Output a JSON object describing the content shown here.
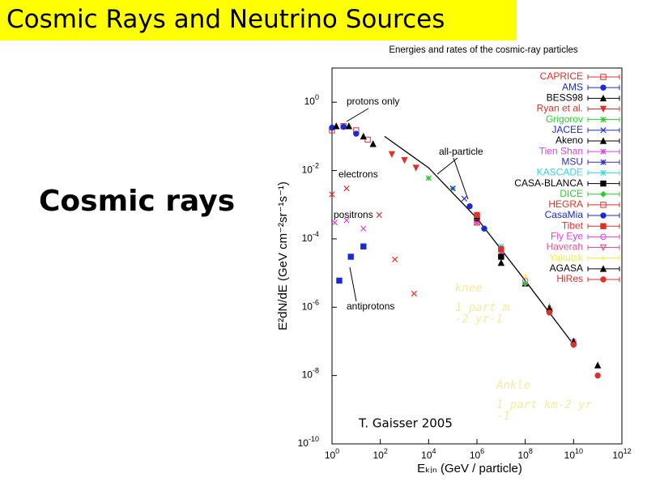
{
  "slide": {
    "title": "Cosmic Rays and Neutrino Sources",
    "heading": "Cosmic rays"
  },
  "chart_data": {
    "type": "scatter",
    "title": "Energies and rates of the cosmic-ray particles",
    "x_label": "Eₖᵢₙ   (GeV / particle)",
    "y_label": "E²dN/dE   (GeV cm⁻²sr⁻¹s⁻¹)",
    "log_x": true,
    "log_y": true,
    "xlim": [
      1,
      1000000000000.0
    ],
    "ylim": [
      1e-10,
      10
    ],
    "xticks": [
      {
        "value": 1,
        "label": "10",
        "exponent": "0"
      },
      {
        "value": 100,
        "label": "10",
        "exponent": "2"
      },
      {
        "value": 10000,
        "label": "10",
        "exponent": "4"
      },
      {
        "value": 1000000,
        "label": "10",
        "exponent": "6"
      },
      {
        "value": 100000000,
        "label": "10",
        "exponent": "8"
      },
      {
        "value": 10000000000,
        "label": "10",
        "exponent": "10"
      },
      {
        "value": 1000000000000,
        "label": "10",
        "exponent": "12"
      }
    ],
    "yticks": [
      {
        "value": 1e-10,
        "label": "10",
        "exponent": "-10"
      },
      {
        "value": 1e-08,
        "label": "10",
        "exponent": "-8"
      },
      {
        "value": 1e-06,
        "label": "10",
        "exponent": "-6"
      },
      {
        "value": 0.0001,
        "label": "10",
        "exponent": "-4"
      },
      {
        "value": 0.01,
        "label": "10",
        "exponent": "-2"
      },
      {
        "value": 1,
        "label": "10",
        "exponent": "0"
      }
    ],
    "series": [
      {
        "name": "CAPRICE",
        "color": "#e0302a",
        "marker": "open-square",
        "x": [
          1,
          3,
          10,
          30
        ],
        "values": [
          0.15,
          0.2,
          0.15,
          0.08
        ]
      },
      {
        "name": "AMS",
        "color": "#1a2bd6",
        "marker": "circle",
        "x": [
          1,
          3,
          10
        ],
        "values": [
          0.18,
          0.19,
          0.12
        ]
      },
      {
        "name": "BESS98",
        "color": "#000000",
        "marker": "triangle",
        "x": [
          1.5,
          5,
          20,
          50
        ],
        "values": [
          0.2,
          0.2,
          0.1,
          0.06
        ]
      },
      {
        "name": "Ryan et al.",
        "color": "#e0302a",
        "marker": "down-triangle",
        "x": [
          300,
          1000,
          3000
        ],
        "values": [
          0.03,
          0.02,
          0.012
        ]
      },
      {
        "name": "Grigorov",
        "color": "#2ecc2e",
        "marker": "star",
        "x": [
          10000,
          100000
        ],
        "values": [
          0.006,
          0.003
        ]
      },
      {
        "name": "JACEE",
        "color": "#1a2bd6",
        "marker": "x",
        "x": [
          100000,
          300000
        ],
        "values": [
          0.003,
          0.0015
        ]
      },
      {
        "name": "Akeno",
        "color": "#000000",
        "marker": "triangle",
        "x": [
          10000000,
          100000000,
          1000000000
        ],
        "values": [
          2e-05,
          5e-06,
          1e-06
        ]
      },
      {
        "name": "Tien Shan",
        "color": "#e040e0",
        "marker": "star",
        "x": [
          1000000,
          10000000
        ],
        "values": [
          0.0003,
          4e-05
        ]
      },
      {
        "name": "MSU",
        "color": "#3030c0",
        "marker": "star",
        "x": [
          1000000,
          10000000
        ],
        "values": [
          0.0004,
          5e-05
        ]
      },
      {
        "name": "KASCADE",
        "color": "#30d8e8",
        "marker": "star",
        "x": [
          1000000,
          10000000
        ],
        "values": [
          0.0005,
          6e-05
        ]
      },
      {
        "name": "CASA-BLANCA",
        "color": "#000000",
        "marker": "square",
        "x": [
          1000000,
          10000000
        ],
        "values": [
          0.0004,
          3e-05
        ]
      },
      {
        "name": "DICE",
        "color": "#2ecc2e",
        "marker": "diamond",
        "x": [
          10000000,
          100000000
        ],
        "values": [
          5e-05,
          5e-06
        ]
      },
      {
        "name": "HEGRA",
        "color": "#e0302a",
        "marker": "open-square",
        "x": [
          1000000
        ],
        "values": [
          0.0003
        ]
      },
      {
        "name": "CasaMia",
        "color": "#1a2bd6",
        "marker": "circle",
        "x": [
          500000,
          2000000
        ],
        "values": [
          0.0009,
          0.0002
        ]
      },
      {
        "name": "Tibet",
        "color": "#e0302a",
        "marker": "square",
        "x": [
          1000000,
          10000000
        ],
        "values": [
          0.0005,
          5e-05
        ]
      },
      {
        "name": "Fly Eye",
        "color": "#e040e0",
        "marker": "open-circle",
        "x": [
          100000000,
          1000000000,
          10000000000
        ],
        "values": [
          6e-06,
          7e-07,
          1e-07
        ]
      },
      {
        "name": "Haverah",
        "color": "#e8508a",
        "marker": "open-down-triangle",
        "x": [
          1000000000,
          10000000000
        ],
        "values": [
          8e-07,
          8e-08
        ]
      },
      {
        "name": "Yakutsk",
        "color": "#f0f040",
        "marker": "plus",
        "x": [
          100000000,
          1000000000,
          10000000000
        ],
        "values": [
          8e-06,
          1e-06,
          1e-07
        ]
      },
      {
        "name": "AGASA",
        "color": "#000000",
        "marker": "triangle",
        "x": [
          1000000000,
          10000000000,
          100000000000
        ],
        "values": [
          9e-07,
          1e-07,
          2e-08
        ]
      },
      {
        "name": "HiRes",
        "color": "#e0302a",
        "marker": "circle",
        "x": [
          1000000000,
          10000000000,
          100000000000
        ],
        "values": [
          7e-07,
          8e-08,
          1e-08
        ]
      }
    ],
    "components": [
      {
        "name": "protons only",
        "color": "#000000",
        "marker": "none",
        "x": [],
        "values": []
      },
      {
        "name": "electrons",
        "color": "#e0302a",
        "marker": "x",
        "x": [
          1,
          4,
          90,
          400,
          2500
        ],
        "values": [
          0.002,
          0.003,
          0.0005,
          2.5e-05,
          2.5e-06
        ]
      },
      {
        "name": "positrons",
        "color": "#e040e0",
        "marker": "x",
        "x": [
          1.3,
          4,
          20
        ],
        "values": [
          0.0003,
          0.00035,
          0.0002
        ]
      },
      {
        "name": "antiprotons",
        "color": "#1a2bd6",
        "marker": "square",
        "x": [
          2,
          6,
          20
        ],
        "values": [
          6e-06,
          3e-05,
          6e-05
        ]
      }
    ],
    "all_particle": {
      "name": "all-particle",
      "color": "#000000",
      "x": [
        150,
        10000,
        1000000,
        100000000,
        10000000000
      ],
      "values": [
        0.1,
        0.012,
        0.0004,
        6e-06,
        8e-08
      ]
    },
    "annotations": {
      "knee": "knee",
      "knee_rate": [
        "1 part m",
        "-2 yr-1"
      ],
      "ankle": "Ankle",
      "ankle_rate": [
        "1 part km-2 yr",
        "-1"
      ],
      "credit": "T. Gaisser 2005"
    }
  }
}
